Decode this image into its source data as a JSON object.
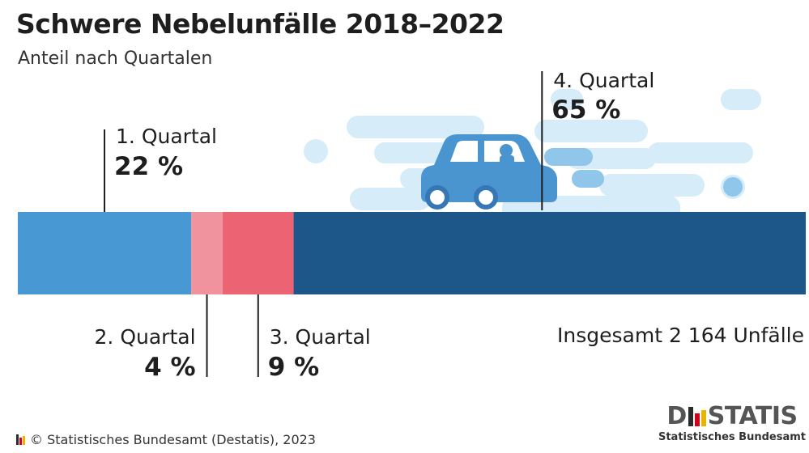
{
  "title": "Schwere Nebelunfälle 2018–2022",
  "subtitle": "Anteil nach Quartalen",
  "chart_data": {
    "type": "bar",
    "orientation": "horizontal-stacked-100",
    "title": "Schwere Nebelunfälle 2018–2022",
    "subtitle": "Anteil nach Quartalen",
    "categories": [
      "1. Quartal",
      "2. Quartal",
      "3. Quartal",
      "4. Quartal"
    ],
    "values": [
      22,
      4,
      9,
      65
    ],
    "value_labels": [
      "22 %",
      "4 %",
      "9 %",
      "65 %"
    ],
    "unit": "%",
    "colors": [
      "#4898d3",
      "#f0939e",
      "#ec6474",
      "#1d5689"
    ],
    "total_label": "Insgesamt 2 164 Unfälle",
    "grid": false,
    "legend": "none"
  },
  "footer": {
    "copyright": "© Statistisches Bundesamt (Destatis), 2023",
    "brand_left": "D",
    "brand_right": "STATIS",
    "brand_sub": "Statistisches Bundesamt"
  },
  "colors": {
    "flag_black": "#2b2b2b",
    "flag_red": "#d0021b",
    "flag_gold": "#e8b400",
    "fog": "#d4ebf7",
    "car": "#4a94cf"
  },
  "illustration": "car-in-fog-icon"
}
